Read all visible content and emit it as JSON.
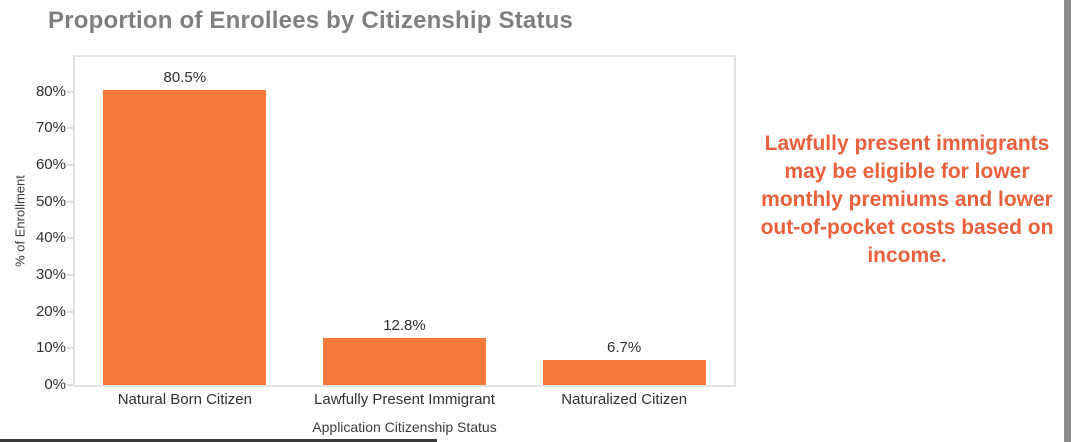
{
  "chart_data": {
    "type": "bar",
    "title": "Proportion of Enrollees by Citizenship Status",
    "categories": [
      "Natural Born Citizen",
      "Lawfully Present Immigrant",
      "Naturalized Citizen"
    ],
    "values": [
      80.5,
      12.8,
      6.7
    ],
    "data_labels": [
      "80.5%",
      "12.8%",
      "6.7%"
    ],
    "xlabel": "Application Citizenship Status",
    "ylabel": "% of Enrollment",
    "ylim": [
      0,
      89.5
    ],
    "ytick_values": [
      0,
      10,
      20,
      30,
      40,
      50,
      60,
      70,
      80
    ],
    "ytick_labels": [
      "0%",
      "10%",
      "20%",
      "30%",
      "40%",
      "50%",
      "60%",
      "70%",
      "80%"
    ],
    "grid": false,
    "legend": "none",
    "bar_color": "#F4793B",
    "title_color": "#7F7F7F",
    "axis_text_color": "#303030",
    "axis_title_color": "#3C3C3C",
    "plot_border_color": "#E3E3E3"
  },
  "annotation": {
    "text": "Lawfully present immigrants may be eligible for lower monthly premiums and lower out-of-pocket costs based on income.",
    "color": "#E8603C"
  },
  "window": {
    "scrollbar_color": "#8E8E8E",
    "bottom_edge_color": "#3A3A3A"
  }
}
